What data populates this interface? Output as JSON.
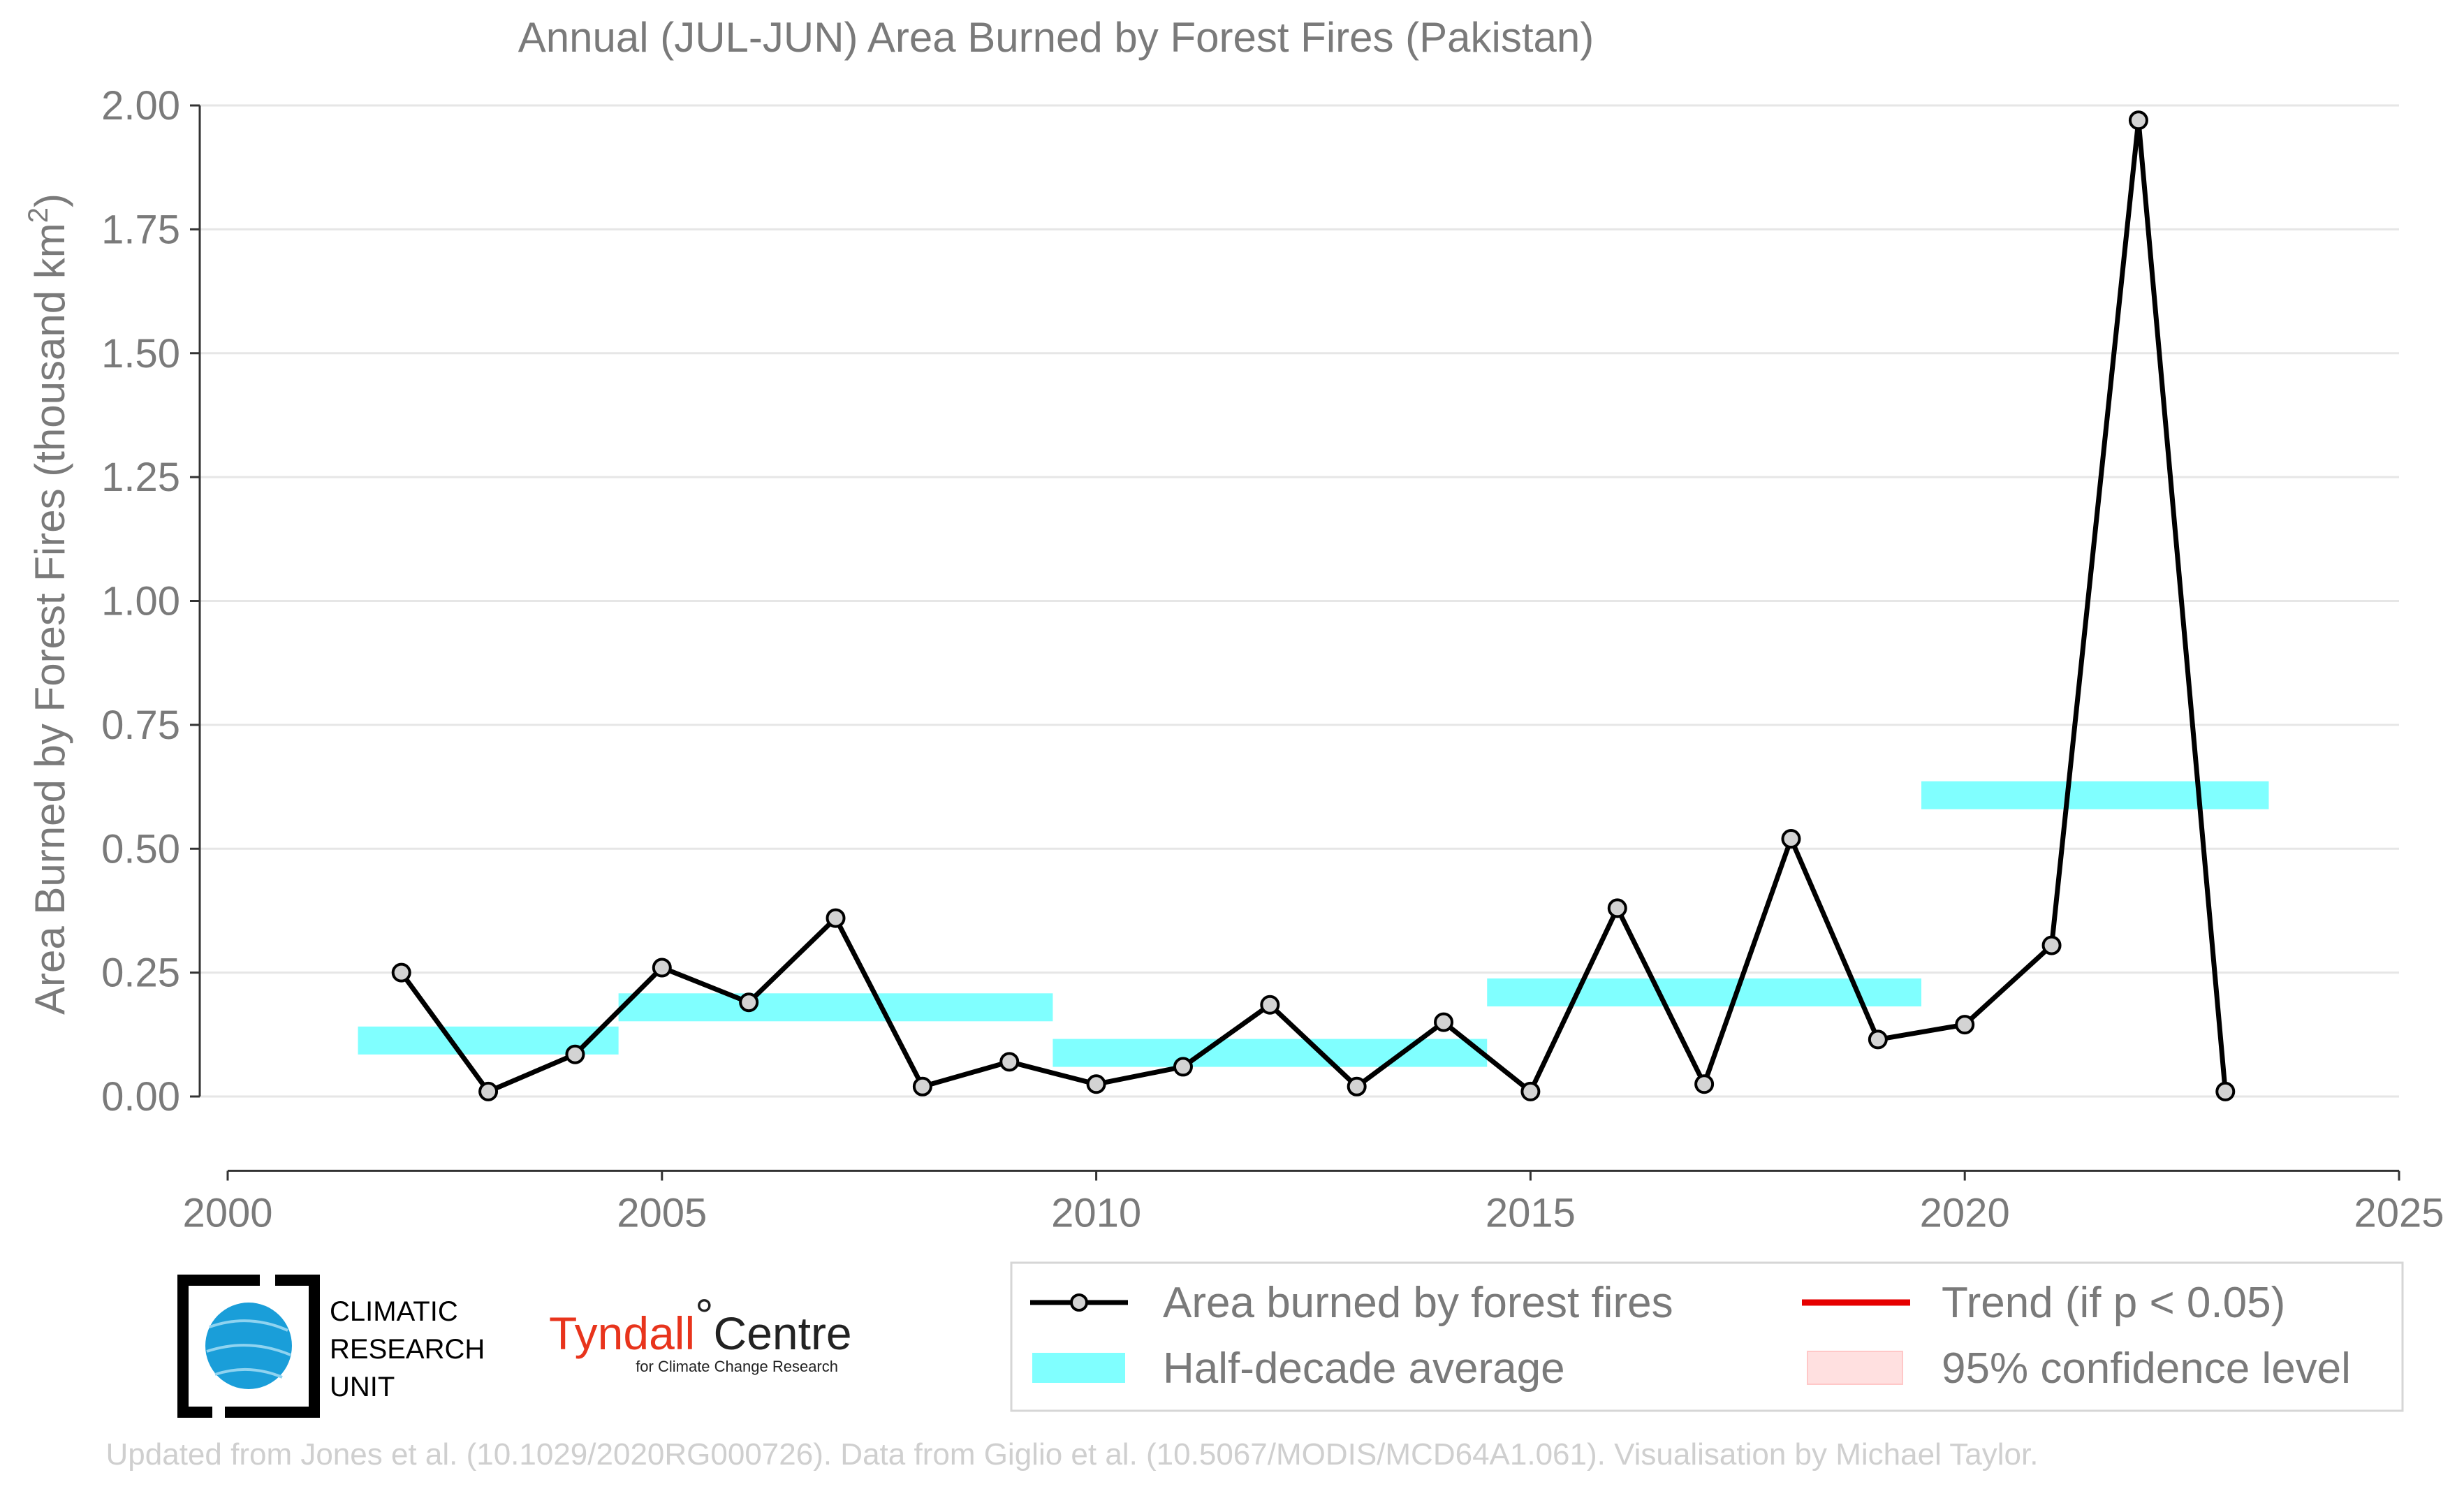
{
  "chart_data": {
    "type": "line",
    "title": "Annual (JUL-JUN) Area Burned by Forest Fires (Pakistan)",
    "ylabel_main": "Area Burned by Forest Fires (thousand km",
    "ylabel_sup": "2",
    "ylabel_end": ")",
    "xlim": [
      2000,
      2025
    ],
    "ylim": [
      -0.15,
      2.02
    ],
    "x_ticks": [
      2000,
      2005,
      2010,
      2015,
      2020,
      2025
    ],
    "x_tick_labels": [
      "2000",
      "2005",
      "2010",
      "2015",
      "2020",
      "2025"
    ],
    "y_ticks": [
      0,
      0.25,
      0.5,
      0.75,
      1.0,
      1.25,
      1.5,
      1.75,
      2.0
    ],
    "y_tick_labels": [
      "0.00",
      "0.25",
      "0.50",
      "0.75",
      "1.00",
      "1.25",
      "1.50",
      "1.75",
      "2.00"
    ],
    "grid": true,
    "series": [
      {
        "name": "Area burned by forest fires",
        "color": "#000000",
        "marker_fill": "#d3d3d3",
        "x": [
          2002,
          2003,
          2004,
          2005,
          2006,
          2007,
          2008,
          2009,
          2010,
          2011,
          2012,
          2013,
          2014,
          2015,
          2016,
          2017,
          2018,
          2019,
          2020,
          2021,
          2022,
          2023
        ],
        "y": [
          0.25,
          0.01,
          0.085,
          0.26,
          0.19,
          0.36,
          0.02,
          0.07,
          0.025,
          0.06,
          0.185,
          0.02,
          0.15,
          0.01,
          0.38,
          0.025,
          0.52,
          0.115,
          0.145,
          0.305,
          1.97,
          0.01
        ]
      }
    ],
    "half_decade_average": {
      "name": "Half-decade average",
      "color": "#80ffff",
      "segments": [
        {
          "x_start": 2001.5,
          "x_end": 2004.5,
          "y": 0.113
        },
        {
          "x_start": 2004.5,
          "x_end": 2009.5,
          "y": 0.18
        },
        {
          "x_start": 2009.5,
          "x_end": 2014.5,
          "y": 0.088
        },
        {
          "x_start": 2014.5,
          "x_end": 2019.5,
          "y": 0.21
        },
        {
          "x_start": 2019.5,
          "x_end": 2023.5,
          "y": 0.608
        }
      ]
    },
    "legend": {
      "placement": "bottom-right",
      "entries": [
        {
          "label": "Area burned by forest fires",
          "kind": "line-marker",
          "color": "#000000"
        },
        {
          "label": "Trend (if p < 0.05)",
          "kind": "line",
          "color": "#e60000"
        },
        {
          "label": "Half-decade average",
          "kind": "band",
          "color": "#80ffff"
        },
        {
          "label": "95% confidence level",
          "kind": "band",
          "color": "#ffe0e0"
        }
      ]
    }
  },
  "logos": {
    "cru": [
      "CLIMATIC",
      "RESEARCH",
      "UNIT"
    ],
    "tyndall_main": "Tyndall",
    "tyndall_degree": "°",
    "tyndall_centre": "Centre",
    "tyndall_sub": "for Climate Change Research"
  },
  "footer": "Updated from Jones et al. (10.1029/2020RG000726). Data from Giglio et al. (10.5067/MODIS/MCD64A1.061). Visualisation by Michael Taylor."
}
